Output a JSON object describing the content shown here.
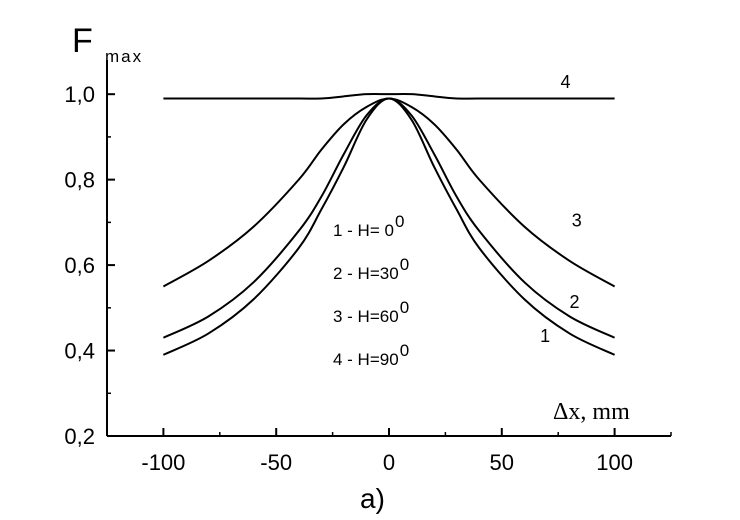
{
  "chart_data": {
    "type": "line",
    "title": "",
    "panel_label": "a)",
    "ylabel": {
      "main": "F",
      "sub": "max"
    },
    "xlabel": "Δx, mm",
    "xlim": [
      -125,
      125
    ],
    "ylim": [
      0.2,
      1.08
    ],
    "xticks": [
      -100,
      -50,
      0,
      50,
      100
    ],
    "xtick_labels": [
      "-100",
      "-50",
      "0",
      "50",
      "100"
    ],
    "yticks": [
      0.2,
      0.4,
      0.6,
      0.8,
      1.0
    ],
    "ytick_labels": [
      "0,2",
      "0,4",
      "0,6",
      "0,8",
      "1,0"
    ],
    "grid": false,
    "series": [
      {
        "name": "1",
        "x": [
          -100,
          -80,
          -60,
          -40,
          -30,
          -20,
          -10,
          0,
          10,
          20,
          30,
          40,
          60,
          80,
          100
        ],
        "y": [
          0.39,
          0.44,
          0.52,
          0.64,
          0.73,
          0.83,
          0.94,
          0.99,
          0.94,
          0.83,
          0.73,
          0.64,
          0.52,
          0.44,
          0.39
        ]
      },
      {
        "name": "2",
        "x": [
          -100,
          -80,
          -60,
          -40,
          -30,
          -20,
          -10,
          0,
          10,
          20,
          30,
          40,
          60,
          80,
          100
        ],
        "y": [
          0.43,
          0.48,
          0.56,
          0.68,
          0.76,
          0.86,
          0.95,
          0.99,
          0.95,
          0.86,
          0.76,
          0.68,
          0.56,
          0.48,
          0.43
        ]
      },
      {
        "name": "3",
        "x": [
          -100,
          -80,
          -60,
          -40,
          -30,
          -20,
          -10,
          0,
          10,
          20,
          30,
          40,
          60,
          80,
          100
        ],
        "y": [
          0.55,
          0.61,
          0.69,
          0.8,
          0.87,
          0.93,
          0.97,
          0.99,
          0.97,
          0.93,
          0.87,
          0.8,
          0.69,
          0.61,
          0.55
        ]
      },
      {
        "name": "4",
        "x": [
          -100,
          -50,
          -30,
          -20,
          -10,
          0,
          10,
          20,
          30,
          50,
          100
        ],
        "y": [
          0.99,
          0.99,
          0.99,
          0.995,
          1.0,
          1.0,
          1.0,
          0.995,
          0.99,
          0.99,
          0.99
        ]
      }
    ],
    "curve_labels": [
      {
        "series": "1",
        "text": "1",
        "x": 67,
        "y": 0.42
      },
      {
        "series": "2",
        "text": "2",
        "x": 80,
        "y": 0.5
      },
      {
        "series": "3",
        "text": "3",
        "x": 81,
        "y": 0.69
      },
      {
        "series": "4",
        "text": "4",
        "x": 76,
        "y": 1.015
      }
    ],
    "legend": {
      "placement": "center",
      "entries": [
        {
          "text": "1 - H= 0",
          "sup": "0"
        },
        {
          "text": "2 - H=30",
          "sup": "0"
        },
        {
          "text": "3 - H=60",
          "sup": "0"
        },
        {
          "text": "4 - H=90",
          "sup": "0"
        }
      ]
    }
  }
}
